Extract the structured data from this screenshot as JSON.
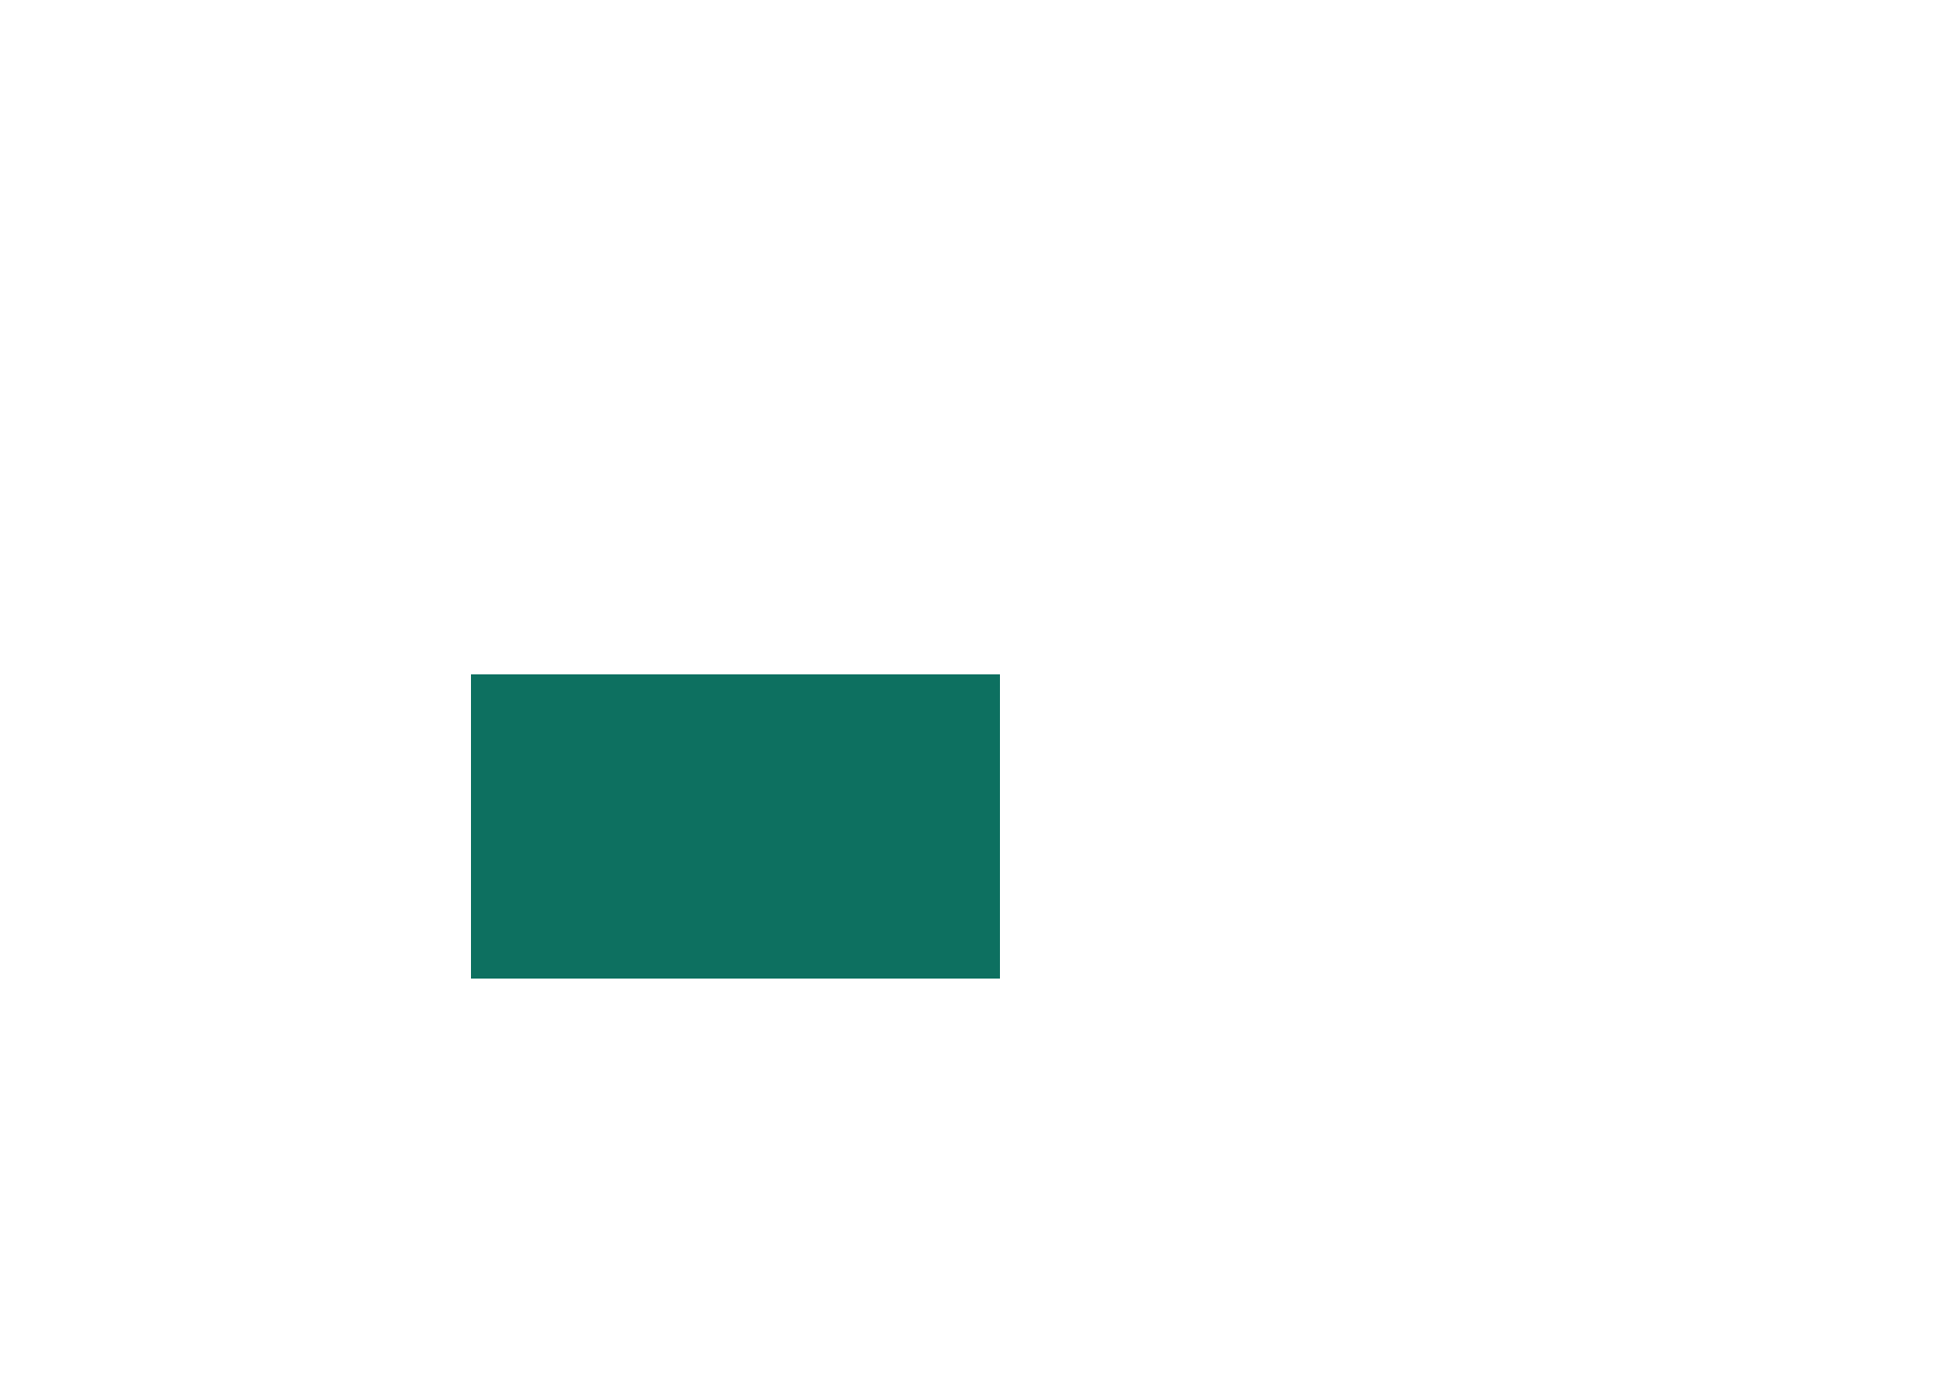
{
  "canvas": {
    "background_color": "#ffffff"
  },
  "block": {
    "fill_color": "#0d7060"
  }
}
